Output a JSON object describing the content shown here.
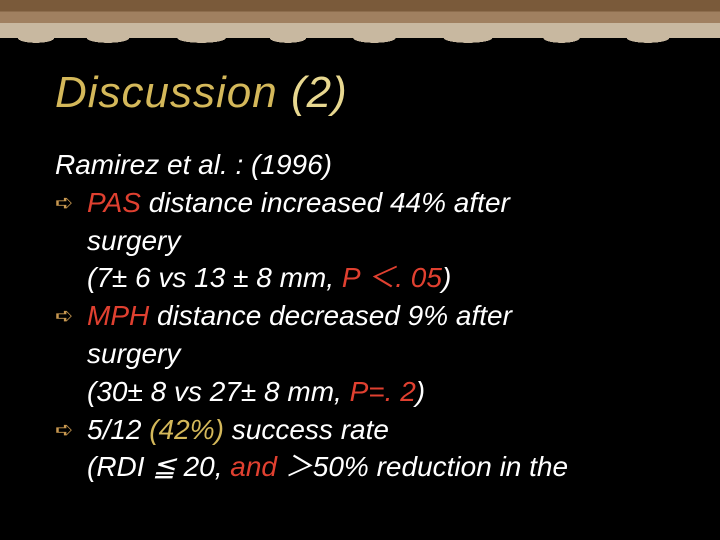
{
  "colors": {
    "background": "#000000",
    "title_gold_dark": "#d4b85a",
    "title_gold_light": "#e8d890",
    "text_white": "#ffffff",
    "text_red": "#e04030",
    "text_yellow": "#d4b85a",
    "bullet_arrow": "#c89850",
    "border_dark": "#7a5a3a",
    "border_mid": "#a08060",
    "border_light": "#c8b8a0"
  },
  "typography": {
    "title_family": "Impact",
    "title_size_pt": 33,
    "title_style": "italic",
    "body_size_pt": 21,
    "body_style": "italic"
  },
  "title": {
    "part1": "Discussion ",
    "part2": "(2)"
  },
  "citation": "Ramirez et al. : (1996)",
  "bullets": [
    {
      "lead_red": "PAS",
      "rest1": " distance increased 44% after",
      "cont1": "surgery",
      "cont2_a": "(7± 6 vs 13 ± 8 mm, ",
      "cont2_red": "P ＜. 05",
      "cont2_b": ")"
    },
    {
      "lead_red": "MPH",
      "rest1": " distance decreased 9% after",
      "cont1": "surgery",
      "cont2_a": "(30± 8 vs 27± 8 mm, ",
      "cont2_red": "P=. 2",
      "cont2_b": ")"
    },
    {
      "lead_white": "5/12 ",
      "lead_yellow": "(42%)",
      "rest1": " success rate",
      "cont1_a": "(RDI ≦ 20, ",
      "cont1_red": "and",
      "cont1_b": " ＞50% reduction in the"
    }
  ],
  "arrow_glyph": "➪"
}
